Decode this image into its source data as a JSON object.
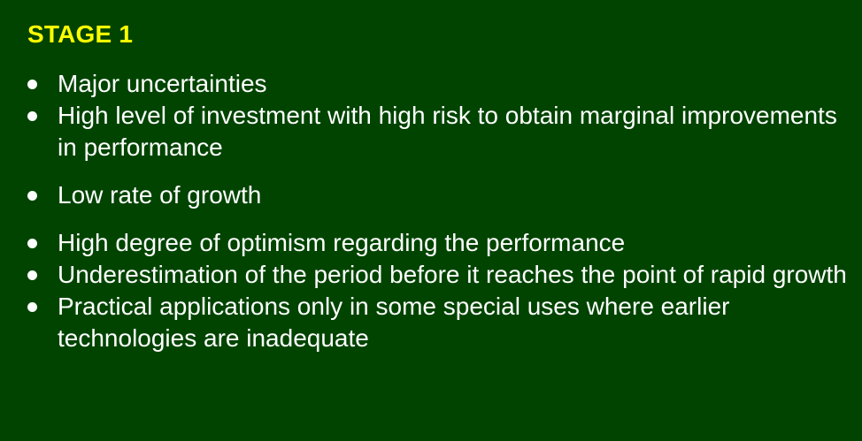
{
  "slide": {
    "title": "STAGE 1",
    "bullets": [
      "Major uncertainties",
      "High level of investment with high risk to obtain marginal improvements in performance",
      "Low rate of growth",
      "High degree of optimism regarding the performance",
      "Underestimation of the period before it reaches the point of rapid growth",
      "Practical applications only in some special uses where earlier technologies are inadequate"
    ]
  },
  "colors": {
    "background": "#004400",
    "title": "#ffff00",
    "text": "#ffffff"
  }
}
